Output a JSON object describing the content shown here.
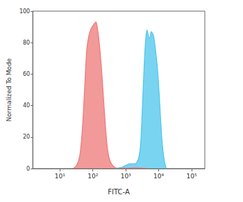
{
  "chart_data": {
    "type": "area",
    "x_label": "FITC-A",
    "y_label": "Normalized To Mode",
    "log": "x",
    "grid": false,
    "xlim": [
      1.5,
      250000
    ],
    "xticks": [
      {
        "value": 10,
        "label": "10¹"
      },
      {
        "value": 100,
        "label": "10²"
      },
      {
        "value": 1000,
        "label": "10³"
      },
      {
        "value": 10000,
        "label": "10⁴"
      },
      {
        "value": 100000,
        "label": "10⁵"
      }
    ],
    "ylim": [
      0,
      100
    ],
    "yticks": [
      0,
      20,
      40,
      60,
      80,
      100
    ],
    "series": [
      {
        "color": "#ee7777",
        "x": [
          25,
          32,
          40,
          48,
          56,
          65,
          75,
          85,
          95,
          110,
          125,
          140,
          160,
          185,
          210,
          245,
          280,
          330,
          420,
          550,
          1000,
          2000,
          3000,
          5000
        ],
        "values": [
          0,
          2,
          8,
          25,
          50,
          75,
          84,
          88,
          90,
          92,
          93,
          88,
          78,
          62,
          45,
          25,
          12,
          5,
          1.5,
          0.3,
          0.3,
          0.5,
          0.3,
          0
        ]
      },
      {
        "color": "#4cc6ec",
        "x": [
          500,
          800,
          1000,
          1300,
          1600,
          1900,
          2400,
          2800,
          3200,
          3600,
          4000,
          4400,
          4900,
          5400,
          5900,
          6400,
          7000,
          8000,
          9000,
          10000,
          11500,
          13000,
          15000,
          17000
        ],
        "values": [
          0,
          1,
          2,
          3,
          3,
          3,
          6,
          15,
          40,
          65,
          82,
          88,
          84,
          83,
          87,
          86,
          84,
          75,
          65,
          52,
          30,
          14,
          4,
          0
        ]
      }
    ]
  }
}
